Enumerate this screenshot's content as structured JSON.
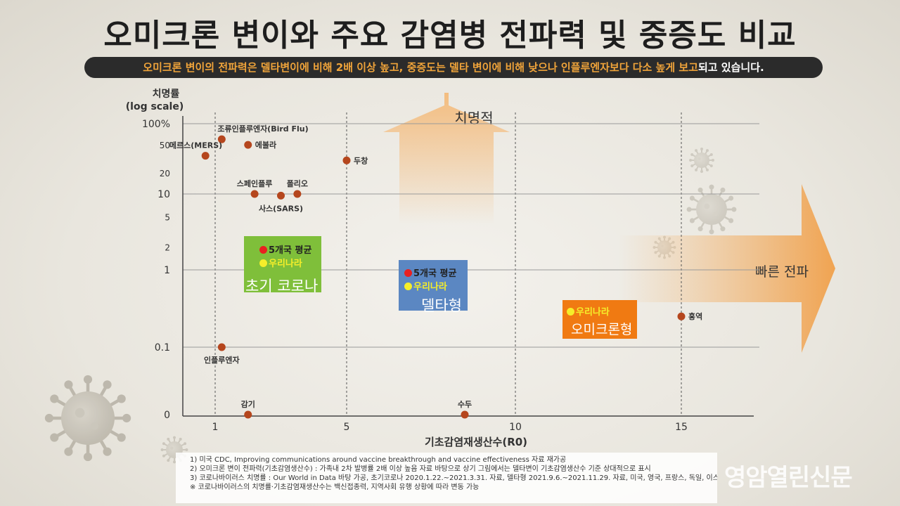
{
  "title": "오미크론 변이와 주요 감염병 전파력 및 중증도 비교",
  "banner": {
    "highlight": "오미크론 변이의 전파력은 델타변이에 비해 2배 이상 높고, 중증도는 델타 변이에 비해 낮으나 인플루엔자보다 다소 높게 보고",
    "rest": "되고 있습니다."
  },
  "colors": {
    "point": "#b5461d",
    "green_box": "#7fbf3a",
    "blue_box": "#5b87c2",
    "orange_box": "#f07a12",
    "arrow": "#f5b56e"
  },
  "chart_data": {
    "type": "scatter",
    "xlabel": "기초감염재생산수(R0)",
    "ylabel_line1": "치명률",
    "ylabel_line2": "(log scale)",
    "xlim": [
      0,
      18
    ],
    "x_ticks": [
      {
        "value": 1,
        "label": "1"
      },
      {
        "value": 5,
        "label": "5"
      },
      {
        "value": 10,
        "label": "10"
      },
      {
        "value": 15,
        "label": "15"
      }
    ],
    "y_scale": "log",
    "y_ticks": [
      {
        "value": 100,
        "label": "100%"
      },
      {
        "value": 50,
        "label": "50"
      },
      {
        "value": 20,
        "label": "20"
      },
      {
        "value": 10,
        "label": "10"
      },
      {
        "value": 5,
        "label": "5"
      },
      {
        "value": 2,
        "label": "2"
      },
      {
        "value": 1,
        "label": "1"
      },
      {
        "value": 0.1,
        "label": "0.1"
      },
      {
        "value": 0.01,
        "label": "0"
      }
    ],
    "points": [
      {
        "label": "조류인플루엔자(Bird Flu)",
        "x": 1.2,
        "y": 60,
        "label_pos": "above-right"
      },
      {
        "label": "메르스(MERS)",
        "x": 0.7,
        "y": 35,
        "label_pos": "above-left"
      },
      {
        "label": "에볼라",
        "x": 2.0,
        "y": 50,
        "label_pos": "right"
      },
      {
        "label": "두창",
        "x": 5.0,
        "y": 30,
        "label_pos": "right"
      },
      {
        "label": "스페인플루",
        "x": 2.2,
        "y": 10,
        "label_pos": "above"
      },
      {
        "label": "폴리오",
        "x": 3.5,
        "y": 10,
        "label_pos": "above"
      },
      {
        "label": "사스(SARS)",
        "x": 3.0,
        "y": 9.5,
        "label_pos": "below"
      },
      {
        "label": "홍역",
        "x": 15.0,
        "y": 0.25,
        "label_pos": "right"
      },
      {
        "label": "인플루엔자",
        "x": 1.2,
        "y": 0.1,
        "label_pos": "below"
      },
      {
        "label": "감기",
        "x": 2.0,
        "y": 0.01,
        "label_pos": "above"
      },
      {
        "label": "수두",
        "x": 8.5,
        "y": 0.01,
        "label_pos": "above"
      }
    ],
    "up_arrow_label": "치명적",
    "right_arrow_label": "빠른 전파"
  },
  "boxes": {
    "early": {
      "line1": "5개국 평균",
      "line2": "우리나라",
      "name": "초기 코로나"
    },
    "delta": {
      "line1": "5개국 평균",
      "line2": "우리나라",
      "name": "델타형"
    },
    "omicron": {
      "line1": "우리나라",
      "name": "오미크론형"
    }
  },
  "notes": [
    "1) 미국 CDC, Improving communications around vaccine breakthrough and vaccine effectiveness 자료 재가공",
    "2) 오미크론 변이 전파력(기초감염생산수) : 가족내 2차 발병률 2배 이상 높음 자료 바탕으로 상기 그림에서는 델타변이 기초감염생산수 기준 상대적으로 표시",
    "3) 코로나바이러스 치명률 : Our World in Data 바탕 가공, 초기코로나 2020.1.22.~2021.3.31. 자료, 델타형 2021.9.6.~2021.11.29. 자료, 미국, 영국, 프랑스, 독일, 이스라엘 평균",
    "※ 코로나바이러스의 치명률·기초감염재생산수는 백신접종력, 지역사회 유행 상황에 따라 변동 가능"
  ],
  "watermark": "영암열린신문"
}
